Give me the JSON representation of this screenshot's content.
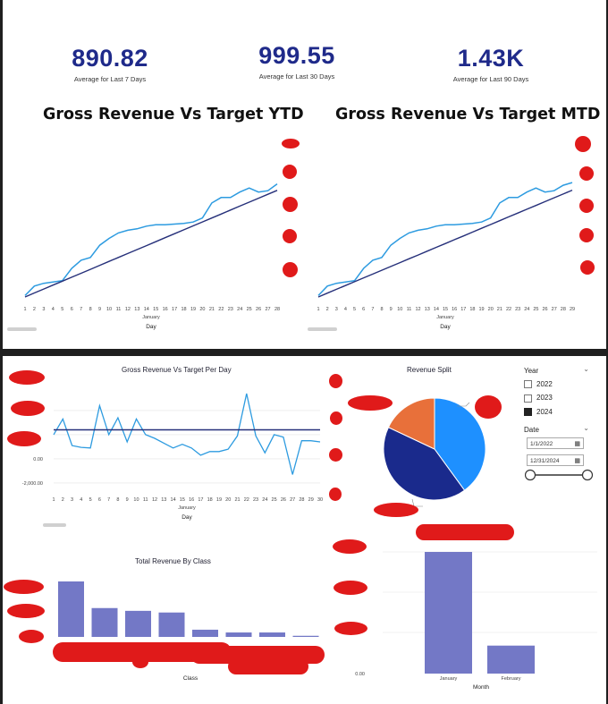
{
  "kpis": [
    {
      "value": "890.82",
      "label": "Average for Last 7 Days"
    },
    {
      "value": "999.55",
      "label": "Average for Last 30 Days"
    },
    {
      "value": "1.43K",
      "label": "Average for Last 90 Days"
    }
  ],
  "slicer": {
    "year_title": "Year",
    "years": [
      {
        "label": "2022",
        "checked": false
      },
      {
        "label": "2023",
        "checked": false
      },
      {
        "label": "2024",
        "checked": true
      }
    ],
    "date_title": "Date",
    "date_from": "1/1/2022",
    "date_to": "12/31/2024"
  },
  "colors": {
    "actual": "#2d9be0",
    "target": "#26307a",
    "bar": "#7378c6",
    "pie_blue": "#1e90ff",
    "pie_navy": "#1a2a8c",
    "pie_orange": "#e8703a"
  },
  "chart_data": [
    {
      "type": "line",
      "title": "Gross Revenue Vs Target YTD",
      "xlabel": "Day",
      "x_sub": "January",
      "x": [
        1,
        2,
        3,
        4,
        5,
        6,
        7,
        8,
        9,
        10,
        11,
        12,
        13,
        14,
        15,
        16,
        17,
        18,
        19,
        20,
        21,
        22,
        23,
        24,
        25,
        26,
        27,
        28
      ],
      "series": [
        {
          "values": [
            3,
            10,
            12,
            13,
            14,
            23,
            29,
            31,
            40,
            45,
            49,
            51,
            52,
            54,
            55,
            55,
            55.5,
            56,
            57,
            60,
            71,
            75,
            75,
            79,
            82,
            79,
            80,
            85
          ]
        },
        {
          "values": [
            2,
            4.9,
            7.8,
            10.7,
            13.6,
            16.5,
            19.4,
            22.3,
            25.2,
            28.1,
            31,
            33.9,
            36.8,
            39.7,
            42.6,
            45.5,
            48.4,
            51.3,
            54.2,
            57.1,
            60,
            62.9,
            65.8,
            68.7,
            71.6,
            74.5,
            77.4,
            80.3
          ]
        }
      ]
    },
    {
      "type": "line",
      "title": "Gross Revenue Vs Target MTD",
      "xlabel": "Day",
      "x_sub": "January",
      "x": [
        1,
        2,
        3,
        4,
        5,
        6,
        7,
        8,
        9,
        10,
        11,
        12,
        13,
        14,
        15,
        16,
        17,
        18,
        19,
        20,
        21,
        22,
        23,
        24,
        25,
        26,
        27,
        28,
        29
      ],
      "series": [
        {
          "values": [
            3,
            10,
            12,
            13,
            14,
            23,
            29,
            31,
            40,
            45,
            49,
            51,
            52,
            54,
            55,
            55,
            55.5,
            56,
            57,
            60,
            71,
            75,
            75,
            79,
            82,
            79,
            80,
            84,
            86
          ]
        },
        {
          "values": [
            2,
            4.8,
            7.6,
            10.4,
            13.2,
            16,
            18.8,
            21.6,
            24.4,
            27.2,
            30,
            32.8,
            35.6,
            38.4,
            41.2,
            44,
            46.8,
            49.6,
            52.4,
            55.2,
            58,
            60.8,
            63.6,
            66.4,
            69.2,
            72,
            74.8,
            77.6,
            80.4
          ]
        }
      ]
    },
    {
      "type": "line",
      "title": "Gross Revenue Vs Target Per Day",
      "xlabel": "Day",
      "x_sub": "January",
      "x": [
        1,
        2,
        3,
        4,
        5,
        6,
        7,
        8,
        9,
        10,
        11,
        12,
        13,
        14,
        15,
        16,
        17,
        18,
        19,
        20,
        21,
        22,
        23,
        24,
        25,
        26,
        27,
        28,
        29,
        30
      ],
      "y_ticks": [
        "0.00",
        "-2,000.00"
      ],
      "series": [
        {
          "values": [
            2000,
            3300,
            1100,
            950,
            900,
            4400,
            2000,
            3400,
            1400,
            3300,
            2000,
            1700,
            1300,
            900,
            1200,
            900,
            300,
            600,
            600,
            800,
            1900,
            5400,
            1900,
            500,
            2000,
            1800,
            -1300,
            1500,
            1500,
            1400
          ]
        },
        {
          "values": [
            2400,
            2400,
            2400,
            2400,
            2400,
            2400,
            2400,
            2400,
            2400,
            2400,
            2400,
            2400,
            2400,
            2400,
            2400,
            2400,
            2400,
            2400,
            2400,
            2400,
            2400,
            2400,
            2400,
            2400,
            2400,
            2400,
            2400,
            2400,
            2400,
            2400
          ]
        }
      ]
    },
    {
      "type": "pie",
      "title": "Revenue Split",
      "values": [
        40,
        42,
        18
      ]
    },
    {
      "type": "bar",
      "title": "Total Revenue By Class",
      "xlabel": "Class",
      "values": [
        100,
        52,
        47,
        44,
        13,
        8,
        8,
        2
      ]
    },
    {
      "type": "bar",
      "title": "",
      "xlabel": "Month",
      "categories": [
        "January",
        "February"
      ],
      "values": [
        100,
        23
      ],
      "y_ticks": [
        "0.00"
      ]
    }
  ]
}
